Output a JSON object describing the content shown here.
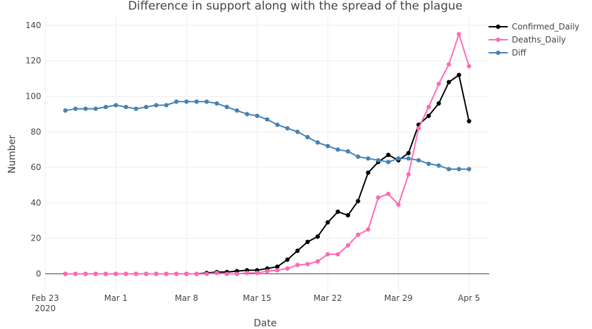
{
  "chart_data": {
    "type": "line",
    "title": "Difference in support along with the spread of the plague",
    "xlabel": "Date",
    "ylabel": "Number",
    "x_tick_labels": [
      {
        "date": "2020-02-23",
        "label": "Feb 23",
        "sublabel": "2020"
      },
      {
        "date": "2020-03-01",
        "label": "Mar 1"
      },
      {
        "date": "2020-03-08",
        "label": "Mar 8"
      },
      {
        "date": "2020-03-15",
        "label": "Mar 15"
      },
      {
        "date": "2020-03-22",
        "label": "Mar 22"
      },
      {
        "date": "2020-03-29",
        "label": "Mar 29"
      },
      {
        "date": "2020-04-05",
        "label": "Apr 5"
      }
    ],
    "y_ticks": [
      0,
      20,
      40,
      60,
      80,
      100,
      120,
      140
    ],
    "xlim": [
      "2020-02-23",
      "2020-04-07"
    ],
    "ylim": [
      -11,
      145
    ],
    "grid": true,
    "legend_position": "top-right",
    "x": [
      "2020-02-25",
      "2020-02-26",
      "2020-02-27",
      "2020-02-28",
      "2020-02-29",
      "2020-03-01",
      "2020-03-02",
      "2020-03-03",
      "2020-03-04",
      "2020-03-05",
      "2020-03-06",
      "2020-03-07",
      "2020-03-08",
      "2020-03-09",
      "2020-03-10",
      "2020-03-11",
      "2020-03-12",
      "2020-03-13",
      "2020-03-14",
      "2020-03-15",
      "2020-03-16",
      "2020-03-17",
      "2020-03-18",
      "2020-03-19",
      "2020-03-20",
      "2020-03-21",
      "2020-03-22",
      "2020-03-23",
      "2020-03-24",
      "2020-03-25",
      "2020-03-26",
      "2020-03-27",
      "2020-03-28",
      "2020-03-29",
      "2020-03-30",
      "2020-03-31",
      "2020-04-01",
      "2020-04-02",
      "2020-04-03",
      "2020-04-04",
      "2020-04-05"
    ],
    "series": [
      {
        "name": "Confirmed_Daily",
        "color": "#000000",
        "values": [
          0,
          0,
          0,
          0,
          0,
          0,
          0,
          0,
          0,
          0,
          0,
          0,
          0,
          0,
          0.5,
          1,
          1,
          1.5,
          2,
          2,
          3,
          4,
          8,
          13,
          18,
          21,
          29,
          35,
          33,
          41,
          57,
          63,
          67,
          64,
          68,
          84,
          89,
          96,
          108,
          112,
          86
        ]
      },
      {
        "name": "Deaths_Daily",
        "color": "#ff69b4",
        "values": [
          0,
          0,
          0,
          0,
          0,
          0,
          0,
          0,
          0,
          0,
          0,
          0,
          0,
          0,
          0,
          0.5,
          0,
          0,
          0.5,
          0.5,
          1.5,
          2,
          3,
          5,
          5.5,
          7,
          11,
          11,
          16,
          22,
          25,
          43,
          45,
          39,
          56,
          82,
          94,
          107,
          118,
          135,
          117
        ]
      },
      {
        "name": "Diff",
        "color": "#4682b4",
        "values": [
          92,
          93,
          93,
          93,
          94,
          95,
          94,
          93,
          94,
          95,
          95,
          97,
          97,
          97,
          97,
          96,
          94,
          92,
          90,
          89,
          87,
          84,
          82,
          80,
          77,
          74,
          72,
          70,
          69,
          66,
          65,
          64,
          63,
          65,
          65,
          64,
          62,
          61,
          59,
          59,
          59
        ]
      }
    ]
  }
}
